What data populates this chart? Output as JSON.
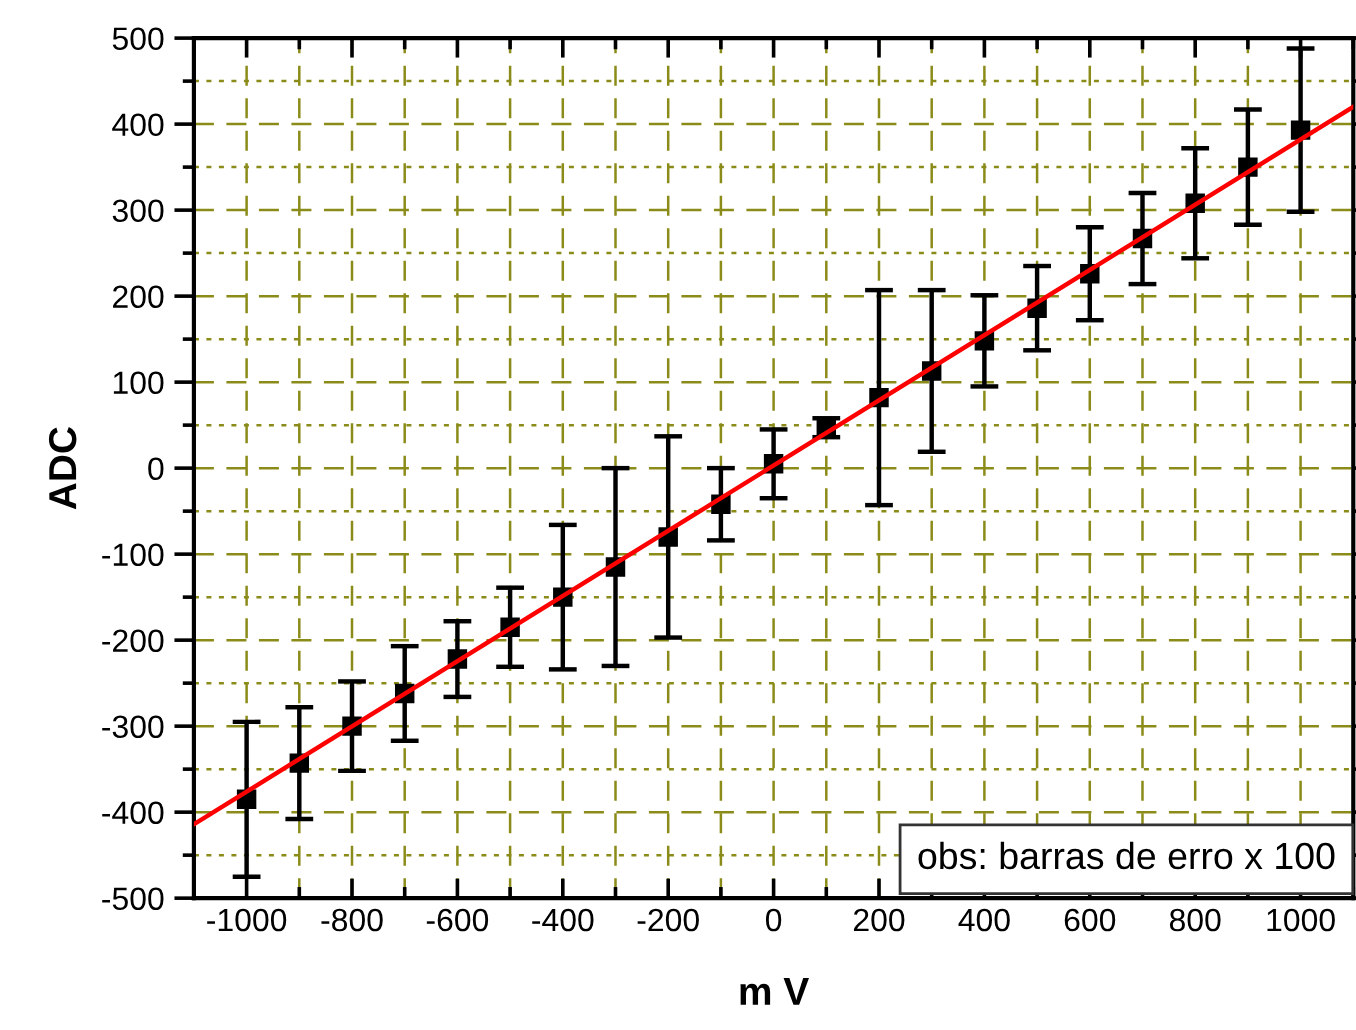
{
  "chart_data": {
    "type": "scatter",
    "xlabel": "m V",
    "ylabel": "ADC",
    "x": [
      -1000,
      -900,
      -800,
      -700,
      -600,
      -500,
      -400,
      -300,
      -200,
      -100,
      0,
      100,
      200,
      300,
      400,
      500,
      600,
      700,
      800,
      900,
      1000
    ],
    "series": [
      {
        "color": "#000000",
        "marker": "square",
        "values": [
          -385,
          -343,
          -300,
          -262,
          -222,
          -185,
          -150,
          -115,
          -80,
          -42,
          5,
          47,
          82,
          113,
          148,
          186,
          226,
          267,
          308,
          350,
          393
        ],
        "errors": [
          90,
          65,
          52,
          55,
          44,
          46,
          84,
          115,
          117,
          42,
          40,
          11,
          125,
          94,
          53,
          49,
          54,
          53,
          64,
          67,
          95
        ]
      },
      {
        "type": "line",
        "color": "#ff0000",
        "line_style": "solid",
        "x": [
          -1100,
          1100
        ],
        "values": [
          -414,
          420
        ]
      }
    ],
    "xlim": [
      -1100,
      1100
    ],
    "ylim": [
      -500,
      500
    ],
    "xticks": [
      -1000,
      -800,
      -600,
      -400,
      -200,
      0,
      200,
      400,
      600,
      800,
      1000
    ],
    "yticks": [
      -500,
      -400,
      -300,
      -200,
      -100,
      0,
      100,
      200,
      300,
      400,
      500
    ],
    "grid": true,
    "annotations": [
      "obs: barras de erro x 100"
    ]
  }
}
